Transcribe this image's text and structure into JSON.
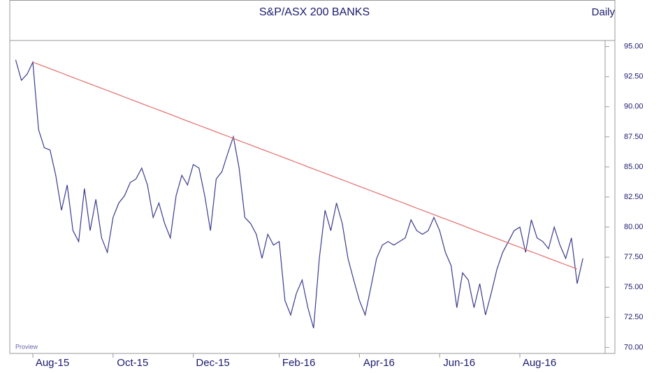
{
  "chart_data": {
    "type": "line",
    "title": "S&P/ASX 200 BANKS",
    "subtitle": "Daily",
    "annotation": "Proview",
    "categories": [
      null,
      null,
      null,
      "Aug-15",
      null,
      null,
      null,
      null,
      null,
      null,
      null,
      null,
      null,
      null,
      null,
      null,
      null,
      "Oct-15",
      null,
      null,
      null,
      null,
      null,
      null,
      null,
      null,
      null,
      null,
      null,
      null,
      null,
      "Dec-15",
      null,
      null,
      null,
      null,
      null,
      null,
      null,
      null,
      null,
      null,
      null,
      null,
      null,
      null,
      "Feb-16",
      null,
      null,
      null,
      null,
      null,
      null,
      null,
      null,
      null,
      null,
      null,
      null,
      null,
      "Apr-16",
      null,
      null,
      null,
      null,
      null,
      null,
      null,
      null,
      null,
      null,
      null,
      null,
      null,
      "Jun-16",
      null,
      null,
      null,
      null,
      null,
      null,
      null,
      null,
      null,
      null,
      null,
      null,
      null,
      "Aug-16",
      null,
      null,
      null,
      null,
      null,
      null,
      null,
      null,
      null,
      null,
      null
    ],
    "series": [
      {
        "color": "#3b3b8e",
        "values": [
          93.9,
          92.2,
          92.7,
          93.7,
          88.1,
          86.6,
          86.4,
          84.3,
          81.4,
          83.5,
          79.7,
          78.8,
          83.2,
          79.7,
          82.3,
          79.1,
          77.9,
          80.8,
          82.0,
          82.6,
          83.7,
          84.0,
          84.9,
          83.5,
          80.8,
          82.0,
          80.3,
          79.1,
          82.6,
          84.3,
          83.5,
          85.2,
          84.9,
          82.6,
          79.7,
          84.0,
          84.6,
          86.1,
          87.5,
          84.9,
          80.8,
          80.3,
          79.4,
          77.4,
          79.4,
          78.5,
          78.8,
          73.9,
          72.7,
          74.5,
          75.6,
          73.3,
          71.6,
          77.4,
          81.4,
          79.7,
          82.0,
          80.3,
          77.4,
          75.6,
          73.9,
          72.7,
          75.0,
          77.4,
          78.5,
          78.8,
          78.5,
          78.8,
          79.1,
          80.6,
          79.7,
          79.4,
          79.7,
          80.8,
          79.7,
          77.9,
          76.8,
          73.3,
          76.2,
          75.6,
          73.3,
          75.3,
          72.7,
          74.5,
          76.5,
          77.9,
          78.8,
          79.7,
          80.0,
          77.9,
          80.6,
          79.1,
          78.8,
          78.2,
          80.0,
          78.5,
          77.4,
          79.1,
          75.3,
          77.4
        ]
      },
      {
        "color": "#e26a6a",
        "values": [
          null,
          null,
          null,
          93.7,
          93.52,
          93.34,
          93.16,
          92.98,
          92.8,
          92.61,
          92.43,
          92.25,
          92.07,
          91.89,
          91.71,
          91.53,
          91.35,
          91.17,
          90.99,
          90.8,
          90.62,
          90.44,
          90.26,
          90.08,
          89.9,
          89.72,
          89.54,
          89.36,
          89.18,
          88.99,
          88.81,
          88.63,
          88.45,
          88.27,
          88.09,
          87.91,
          87.73,
          87.55,
          87.37,
          87.18,
          87.0,
          86.82,
          86.64,
          86.46,
          86.28,
          86.1,
          85.92,
          85.74,
          85.56,
          85.37,
          85.19,
          85.01,
          84.83,
          84.65,
          84.47,
          84.29,
          84.11,
          83.93,
          83.75,
          83.56,
          83.38,
          83.2,
          83.02,
          82.84,
          82.66,
          82.48,
          82.3,
          82.12,
          81.94,
          81.75,
          81.57,
          81.39,
          81.21,
          81.03,
          80.85,
          80.67,
          80.49,
          80.31,
          80.13,
          79.94,
          79.76,
          79.58,
          79.4,
          79.22,
          79.04,
          78.86,
          78.68,
          78.5,
          78.32,
          78.13,
          77.95,
          77.77,
          77.59,
          77.41,
          77.23,
          77.05,
          76.87,
          76.69,
          76.51,
          null
        ]
      }
    ],
    "ylim": [
      69.5,
      95.5
    ],
    "yticks": [
      {
        "value": 70,
        "label": "70.00"
      },
      {
        "value": 72.5,
        "label": "72.50"
      },
      {
        "value": 75,
        "label": "75.00"
      },
      {
        "value": 77.5,
        "label": "77.50"
      },
      {
        "value": 80,
        "label": "80.00"
      },
      {
        "value": 82.5,
        "label": "82.50"
      },
      {
        "value": 85,
        "label": "85.00"
      },
      {
        "value": 87.5,
        "label": "87.50"
      },
      {
        "value": 90,
        "label": "90.00"
      },
      {
        "value": 92.5,
        "label": "92.50"
      },
      {
        "value": 95,
        "label": "95.00"
      }
    ],
    "y_axis_side": "right",
    "grid": false
  }
}
